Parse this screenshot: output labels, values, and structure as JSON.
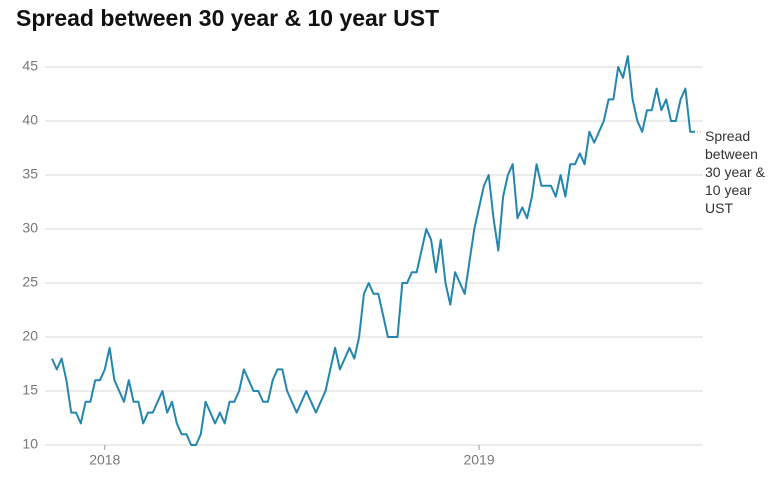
{
  "chart_data": {
    "type": "line",
    "title": "Spread between 30 year & 10 year UST",
    "categories": [
      null,
      null,
      null,
      null,
      null,
      null,
      null,
      null,
      null,
      null,
      null,
      "2018",
      null,
      null,
      null,
      null,
      null,
      null,
      null,
      null,
      null,
      null,
      null,
      null,
      null,
      null,
      null,
      null,
      null,
      null,
      null,
      null,
      null,
      null,
      null,
      null,
      null,
      null,
      null,
      null,
      null,
      null,
      null,
      null,
      null,
      null,
      null,
      null,
      null,
      null,
      null,
      null,
      null,
      null,
      null,
      null,
      null,
      null,
      null,
      null,
      null,
      null,
      null,
      null,
      null,
      null,
      null,
      null,
      null,
      null,
      null,
      null,
      null,
      null,
      null,
      null,
      null,
      null,
      null,
      null,
      null,
      null,
      null,
      null,
      null,
      null,
      null,
      null,
      null,
      "2019",
      null,
      null,
      null,
      null,
      null,
      null,
      null,
      null,
      null,
      null,
      null,
      null,
      null,
      null,
      null,
      null,
      null,
      null,
      null,
      null,
      null,
      null,
      null,
      null,
      null,
      null,
      null,
      null,
      null,
      null,
      null,
      null,
      null,
      null,
      null,
      null,
      null,
      null,
      null,
      null,
      null,
      null,
      null,
      null,
      null
    ],
    "series": [
      {
        "name": "Spread between 30 year & 10 year UST",
        "color": "#2386ad",
        "values": [
          18,
          17,
          18,
          16,
          13,
          13,
          12,
          14,
          14,
          16,
          16,
          17,
          19,
          16,
          15,
          14,
          16,
          14,
          14,
          12,
          13,
          13,
          14,
          15,
          13,
          14,
          12,
          11,
          11,
          10,
          10,
          11,
          14,
          13,
          12,
          13,
          12,
          14,
          14,
          15,
          17,
          16,
          15,
          15,
          14,
          14,
          16,
          17,
          17,
          15,
          14,
          13,
          14,
          15,
          14,
          13,
          14,
          15,
          17,
          19,
          17,
          18,
          19,
          18,
          20,
          24,
          25,
          24,
          24,
          22,
          20,
          20,
          20,
          25,
          25,
          26,
          26,
          28,
          30,
          29,
          26,
          29,
          25,
          23,
          26,
          25,
          24,
          27,
          30,
          32,
          34,
          35,
          31,
          28,
          33,
          35,
          36,
          31,
          32,
          31,
          33,
          36,
          34,
          34,
          34,
          33,
          35,
          33,
          36,
          36,
          37,
          36,
          39,
          38,
          39,
          40,
          42,
          42,
          45,
          44,
          46,
          42,
          40,
          39,
          41,
          41,
          43,
          41,
          42,
          40,
          40,
          42,
          43,
          39,
          39
        ]
      }
    ],
    "ylim": [
      10,
      45
    ],
    "yticks": [
      10,
      15,
      20,
      25,
      30,
      35,
      40,
      45
    ],
    "grid": true
  }
}
